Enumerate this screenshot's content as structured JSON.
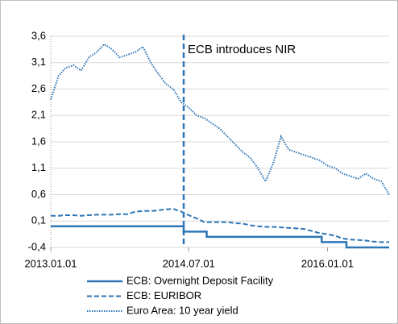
{
  "chart_data": {
    "type": "line",
    "xlim": [
      "2013.01.01",
      "2016.09.01"
    ],
    "xticks": [
      "2013.01.01",
      "2014.07.01",
      "2016.01.01"
    ],
    "ylim": [
      -0.4,
      3.6
    ],
    "yticks": [
      {
        "value": -0.4,
        "label": "-0,4"
      },
      {
        "value": 0.1,
        "label": "0,1"
      },
      {
        "value": 0.6,
        "label": "0,6"
      },
      {
        "value": 1.1,
        "label": "1,1"
      },
      {
        "value": 1.6,
        "label": "1,6"
      },
      {
        "value": 2.1,
        "label": "2,1"
      },
      {
        "value": 2.6,
        "label": "2,6"
      },
      {
        "value": 3.1,
        "label": "3,1"
      },
      {
        "value": 3.6,
        "label": "3,6"
      }
    ],
    "grid": true,
    "annotation": {
      "text": "ECB introduces NIR",
      "x": "2014.06.11"
    },
    "series": [
      {
        "name": "ECB: Overnight Deposit Facility",
        "color": "#2e75b6",
        "style": "solid",
        "x": [
          "2013.01.01",
          "2014.06.11",
          "2014.06.11",
          "2014.09.10",
          "2014.09.10",
          "2015.12.09",
          "2015.12.09",
          "2016.03.16",
          "2016.03.16",
          "2016.09.01"
        ],
        "values": [
          0,
          0,
          -0.1,
          -0.1,
          -0.2,
          -0.2,
          -0.3,
          -0.3,
          -0.4,
          -0.4
        ]
      },
      {
        "name": "ECB: EURIBOR",
        "color": "#2e75b6",
        "style": "dashed",
        "x": [
          "2013.01.01",
          "2013.02.01",
          "2013.03.01",
          "2013.04.01",
          "2013.05.01",
          "2013.06.01",
          "2013.07.01",
          "2013.08.01",
          "2013.09.01",
          "2013.10.01",
          "2013.11.01",
          "2013.12.01",
          "2014.01.01",
          "2014.02.01",
          "2014.03.01",
          "2014.04.01",
          "2014.05.01",
          "2014.06.01",
          "2014.07.01",
          "2014.08.01",
          "2014.09.01",
          "2014.10.01",
          "2014.11.01",
          "2014.12.01",
          "2015.01.01",
          "2015.02.01",
          "2015.03.01",
          "2015.04.01",
          "2015.05.01",
          "2015.06.01",
          "2015.07.01",
          "2015.08.01",
          "2015.09.01",
          "2015.10.01",
          "2015.11.01",
          "2015.12.01",
          "2016.01.01",
          "2016.02.01",
          "2016.03.01",
          "2016.04.01",
          "2016.05.01",
          "2016.06.01",
          "2016.07.01",
          "2016.08.01",
          "2016.09.01"
        ],
        "values": [
          0.2,
          0.2,
          0.21,
          0.21,
          0.2,
          0.21,
          0.22,
          0.22,
          0.22,
          0.23,
          0.23,
          0.28,
          0.29,
          0.29,
          0.3,
          0.32,
          0.33,
          0.28,
          0.21,
          0.15,
          0.08,
          0.08,
          0.08,
          0.08,
          0.06,
          0.05,
          0.02,
          0,
          -0.01,
          -0.01,
          -0.02,
          -0.03,
          -0.04,
          -0.05,
          -0.09,
          -0.13,
          -0.15,
          -0.18,
          -0.23,
          -0.25,
          -0.26,
          -0.27,
          -0.29,
          -0.3,
          -0.3
        ]
      },
      {
        "name": "Euro Area: 10 year yield",
        "color": "#2e75b6",
        "style": "dotted",
        "x": [
          "2013.01.01",
          "2013.02.01",
          "2013.03.01",
          "2013.04.01",
          "2013.05.01",
          "2013.06.01",
          "2013.07.01",
          "2013.08.01",
          "2013.09.01",
          "2013.10.01",
          "2013.11.01",
          "2013.12.01",
          "2014.01.01",
          "2014.02.01",
          "2014.03.01",
          "2014.04.01",
          "2014.05.01",
          "2014.06.01",
          "2014.07.01",
          "2014.08.01",
          "2014.09.01",
          "2014.10.01",
          "2014.11.01",
          "2014.12.01",
          "2015.01.01",
          "2015.02.01",
          "2015.03.01",
          "2015.04.01",
          "2015.05.01",
          "2015.06.01",
          "2015.07.01",
          "2015.08.01",
          "2015.09.01",
          "2015.10.01",
          "2015.11.01",
          "2015.12.01",
          "2016.01.01",
          "2016.02.01",
          "2016.03.01",
          "2016.04.01",
          "2016.05.01",
          "2016.06.01",
          "2016.07.01",
          "2016.08.01",
          "2016.09.01"
        ],
        "values": [
          2.4,
          2.85,
          3.0,
          3.05,
          2.95,
          3.2,
          3.3,
          3.45,
          3.35,
          3.2,
          3.25,
          3.3,
          3.4,
          3.1,
          2.9,
          2.7,
          2.6,
          2.35,
          2.25,
          2.1,
          2.05,
          1.95,
          1.85,
          1.7,
          1.55,
          1.4,
          1.3,
          1.1,
          0.85,
          1.2,
          1.7,
          1.45,
          1.4,
          1.35,
          1.3,
          1.25,
          1.15,
          1.1,
          1.0,
          0.95,
          0.9,
          1.0,
          0.9,
          0.85,
          0.6
        ]
      }
    ]
  }
}
